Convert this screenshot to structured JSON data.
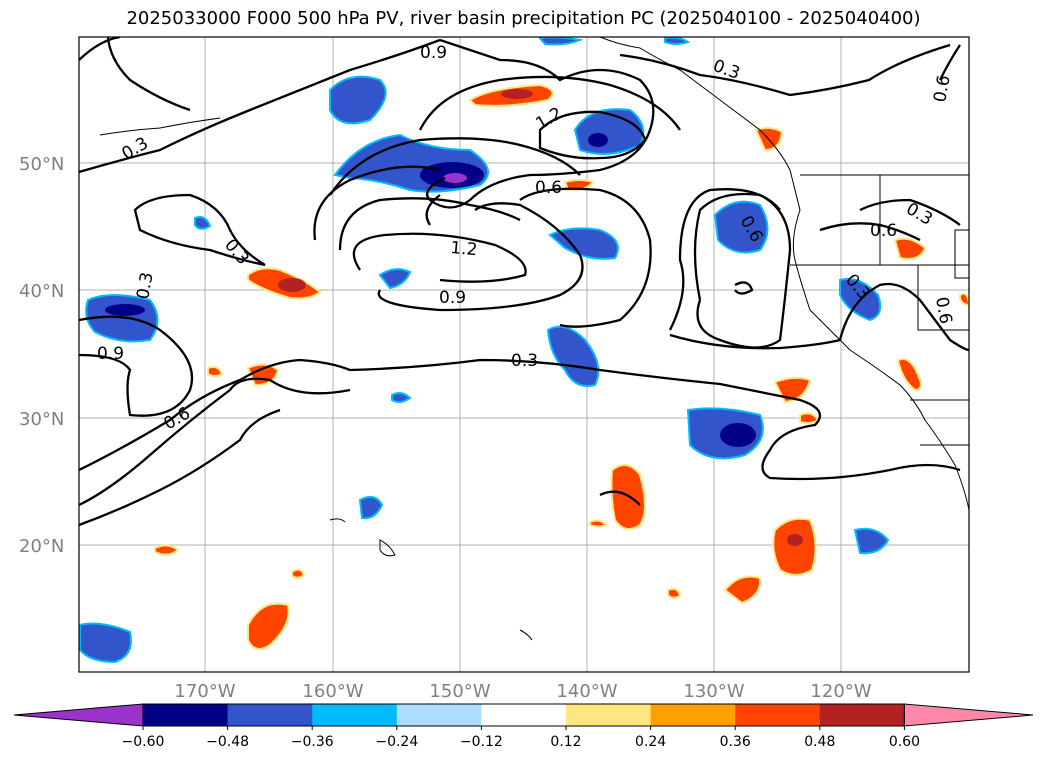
{
  "title": "2025033000 F000 500 hPa PV, river basin precipitation PC (2025040100 - 2025040400)",
  "lat_labels": [
    "50°N",
    "40°N",
    "30°N",
    "20°N"
  ],
  "lon_labels": [
    "170°W",
    "160°W",
    "150°W",
    "140°W",
    "130°W",
    "120°W"
  ],
  "contour_labels": [
    "0.3",
    "0.6",
    "0.9",
    "1.2"
  ],
  "colorbar": {
    "ticks": [
      "−0.60",
      "−0.48",
      "−0.36",
      "−0.24",
      "−0.12",
      "0.12",
      "0.24",
      "0.36",
      "0.48",
      "0.60"
    ],
    "colors": [
      "#9933cc",
      "#000088",
      "#3355cc",
      "#00bbff",
      "#aaddff",
      "#ffffff",
      "#ffe680",
      "#ffa000",
      "#ff4400",
      "#b22222",
      "#ff88aa"
    ]
  }
}
